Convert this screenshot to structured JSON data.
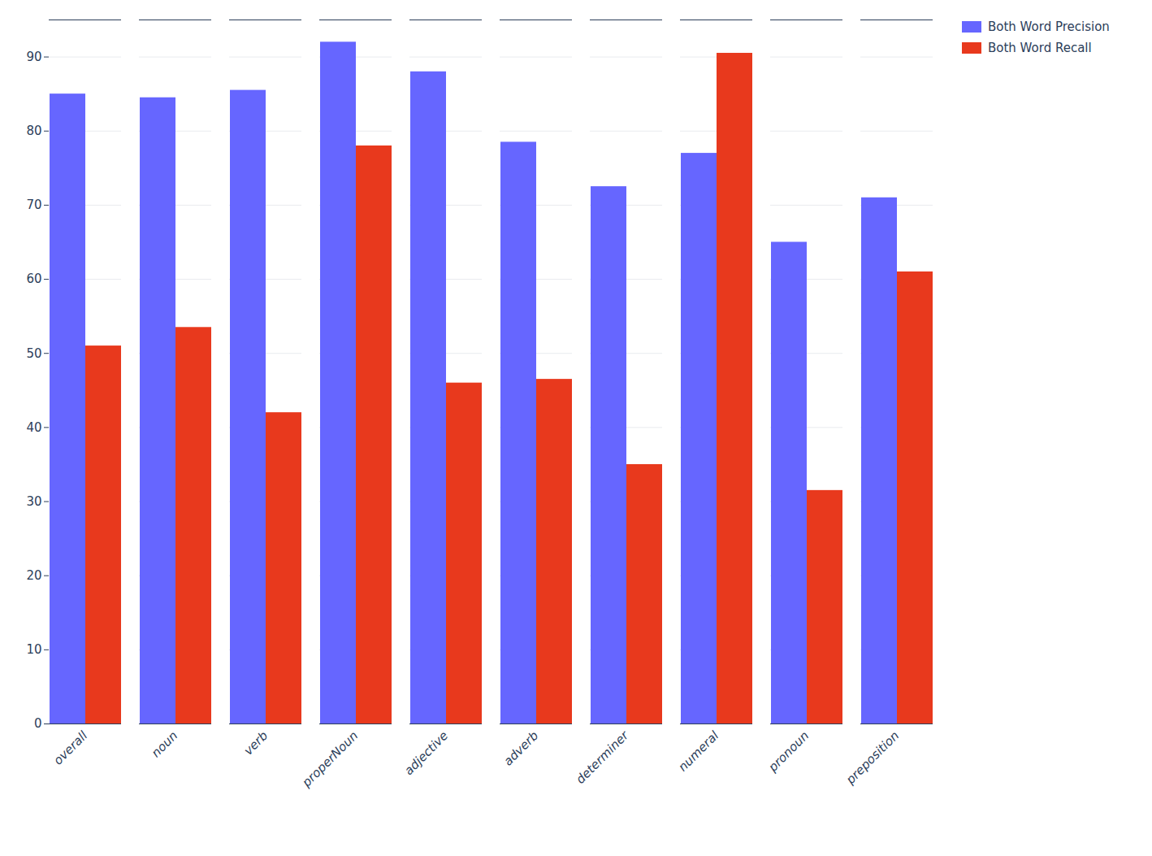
{
  "chart_data": {
    "type": "bar",
    "categories": [
      "overall",
      "noun",
      "verb",
      "properNoun",
      "adjective",
      "adverb",
      "determiner",
      "numeral",
      "pronoun",
      "preposition"
    ],
    "series": [
      {
        "name": "Both Word Precision",
        "color": "#6666ff",
        "values": [
          85.0,
          84.5,
          85.5,
          92.0,
          88.0,
          78.5,
          72.5,
          77.0,
          65.0,
          71.0
        ]
      },
      {
        "name": "Both Word Recall",
        "color": "#e8391d",
        "values": [
          51.0,
          53.5,
          42.0,
          78.0,
          46.0,
          46.5,
          35.0,
          90.5,
          31.5,
          61.0
        ]
      }
    ],
    "ylim": [
      0,
      95
    ],
    "yticks": [
      0,
      10,
      20,
      30,
      40,
      50,
      60,
      70,
      80,
      90
    ],
    "grid": true,
    "legend": "right"
  }
}
